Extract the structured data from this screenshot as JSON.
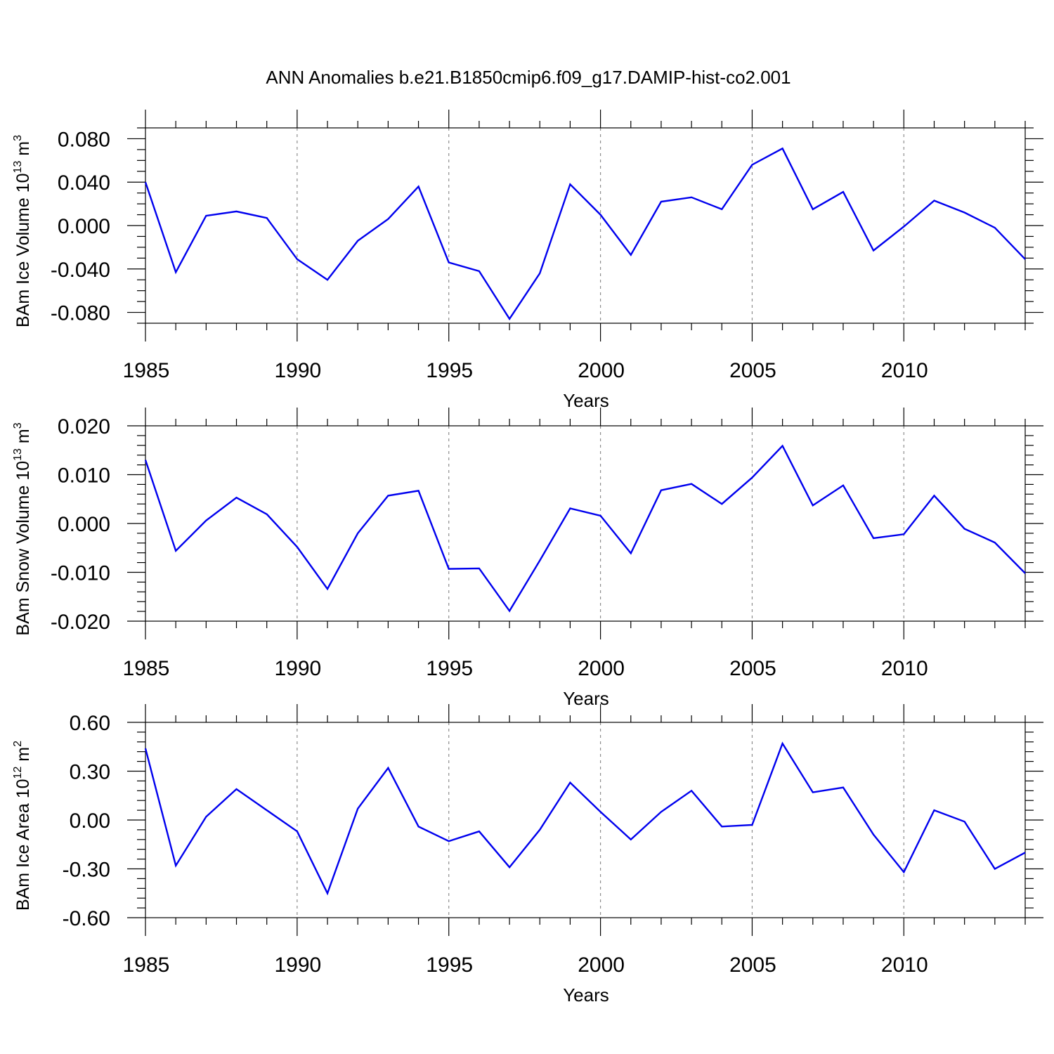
{
  "title": "ANN Anomalies b.e21.B1850cmip6.f09_g17.DAMIP-hist-co2.001",
  "chart_data": [
    {
      "type": "line",
      "xlabel": "Years",
      "ylabel": {
        "text": "BAm Ice Volume 10",
        "sup": "13",
        "unit": " m",
        "unit_sup": "3"
      },
      "xlim": [
        1985,
        2014
      ],
      "ylim": [
        -0.09,
        0.09
      ],
      "major_x_ticks": [
        1985,
        1990,
        1995,
        2000,
        2005,
        2010
      ],
      "x_tick_labels": [
        "1985",
        "1990",
        "1995",
        "2000",
        "2005",
        "2010"
      ],
      "y_ticks": [
        -0.08,
        -0.04,
        0.0,
        0.04,
        0.08
      ],
      "y_tick_labels": [
        "-0.080",
        "-0.040",
        "0.000",
        "0.040",
        "0.080"
      ],
      "y_minor_step": 0.01,
      "grid": "vertical dashed at major x ticks",
      "color": "#0000ee",
      "x": [
        1985,
        1986,
        1987,
        1988,
        1989,
        1990,
        1991,
        1992,
        1993,
        1994,
        1995,
        1996,
        1997,
        1998,
        1999,
        2000,
        2001,
        2002,
        2003,
        2004,
        2005,
        2006,
        2007,
        2008,
        2009,
        2010,
        2011,
        2012,
        2013,
        2014
      ],
      "values": [
        0.04,
        -0.043,
        0.009,
        0.013,
        0.007,
        -0.031,
        -0.05,
        -0.014,
        0.006,
        0.036,
        -0.034,
        -0.042,
        -0.086,
        -0.044,
        0.038,
        0.01,
        -0.027,
        0.022,
        0.026,
        0.015,
        0.056,
        0.071,
        0.015,
        0.031,
        -0.023,
        -0.001,
        0.023,
        0.012,
        -0.002,
        -0.031
      ]
    },
    {
      "type": "line",
      "xlabel": "Years",
      "ylabel": {
        "text": "BAm Snow Volume 10",
        "sup": "13",
        "unit": " m",
        "unit_sup": "3"
      },
      "xlim": [
        1985,
        2014
      ],
      "ylim": [
        -0.02,
        0.02
      ],
      "major_x_ticks": [
        1985,
        1990,
        1995,
        2000,
        2005,
        2010
      ],
      "x_tick_labels": [
        "1985",
        "1990",
        "1995",
        "2000",
        "2005",
        "2010"
      ],
      "y_ticks": [
        -0.02,
        -0.01,
        0.0,
        0.01,
        0.02
      ],
      "y_tick_labels": [
        "-0.020",
        "-0.010",
        "0.000",
        "0.010",
        "0.020"
      ],
      "y_minor_step": 0.002,
      "grid": "vertical dashed at major x ticks",
      "color": "#0000ee",
      "x": [
        1985,
        1986,
        1987,
        1988,
        1989,
        1990,
        1991,
        1992,
        1993,
        1994,
        1995,
        1996,
        1997,
        1998,
        1999,
        2000,
        2001,
        2002,
        2003,
        2004,
        2005,
        2006,
        2007,
        2008,
        2009,
        2010,
        2011,
        2012,
        2013,
        2014
      ],
      "values": [
        0.013,
        -0.0056,
        0.0006,
        0.0053,
        0.0019,
        -0.0048,
        -0.0134,
        -0.002,
        0.0057,
        0.0067,
        -0.0093,
        -0.0092,
        -0.0179,
        -0.0076,
        0.0031,
        0.0016,
        -0.0061,
        0.0068,
        0.0081,
        0.004,
        0.0094,
        0.0159,
        0.0037,
        0.0078,
        -0.003,
        -0.0022,
        0.0057,
        -0.0011,
        -0.0039,
        -0.0102
      ]
    },
    {
      "type": "line",
      "xlabel": "Years",
      "ylabel": {
        "text": "BAm Ice Area 10",
        "sup": "12",
        "unit": " m",
        "unit_sup": "2"
      },
      "xlim": [
        1985,
        2014
      ],
      "ylim": [
        -0.6,
        0.6
      ],
      "major_x_ticks": [
        1985,
        1990,
        1995,
        2000,
        2005,
        2010
      ],
      "x_tick_labels": [
        "1985",
        "1990",
        "1995",
        "2000",
        "2005",
        "2010"
      ],
      "y_ticks": [
        -0.6,
        -0.3,
        0.0,
        0.3,
        0.6
      ],
      "y_tick_labels": [
        "-0.60",
        "-0.30",
        "0.00",
        "0.30",
        "0.60"
      ],
      "y_minor_step": 0.06,
      "grid": "vertical dashed at major x ticks",
      "color": "#0000ee",
      "x": [
        1985,
        1986,
        1987,
        1988,
        1989,
        1990,
        1991,
        1992,
        1993,
        1994,
        1995,
        1996,
        1997,
        1998,
        1999,
        2000,
        2001,
        2002,
        2003,
        2004,
        2005,
        2006,
        2007,
        2008,
        2009,
        2010,
        2011,
        2012,
        2013,
        2014
      ],
      "values": [
        0.44,
        -0.28,
        0.02,
        0.19,
        0.06,
        -0.07,
        -0.45,
        0.07,
        0.32,
        -0.04,
        -0.13,
        -0.07,
        -0.29,
        -0.06,
        0.23,
        0.05,
        -0.12,
        0.05,
        0.18,
        -0.04,
        -0.03,
        0.47,
        0.17,
        0.2,
        -0.09,
        -0.32,
        0.06,
        -0.01,
        -0.3,
        -0.2
      ]
    }
  ]
}
